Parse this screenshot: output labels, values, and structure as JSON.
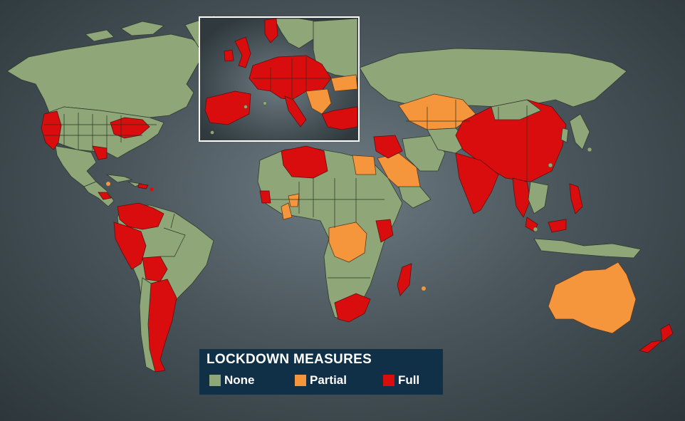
{
  "legend": {
    "title": "LOCKDOWN MEASURES",
    "items": [
      {
        "label": "None",
        "color": "#8fa679"
      },
      {
        "label": "Partial",
        "color": "#f5963c"
      },
      {
        "label": "Full",
        "color": "#d90d0d"
      }
    ]
  },
  "map": {
    "categories": {
      "none": "#8fa679",
      "partial": "#f5963c",
      "full": "#d90d0d"
    },
    "inset_region": "Europe",
    "partial_lockdown": [
      "Australia",
      "Egypt",
      "Saudi Arabia",
      "Kazakhstan",
      "DR Congo",
      "Ghana",
      "Togo"
    ],
    "full_lockdown": [
      "China",
      "India",
      "Europe",
      "Argentina",
      "Peru",
      "Colombia",
      "Venezuela",
      "Bolivia",
      "South Africa",
      "Madagascar",
      "New Zealand",
      "Philippines",
      "Thailand",
      "Malaysia",
      "Algeria",
      "Libya",
      "Turkey",
      "Kenya",
      "Mexico",
      "California",
      "Ecuador",
      "Iraq",
      "Syria"
    ]
  }
}
